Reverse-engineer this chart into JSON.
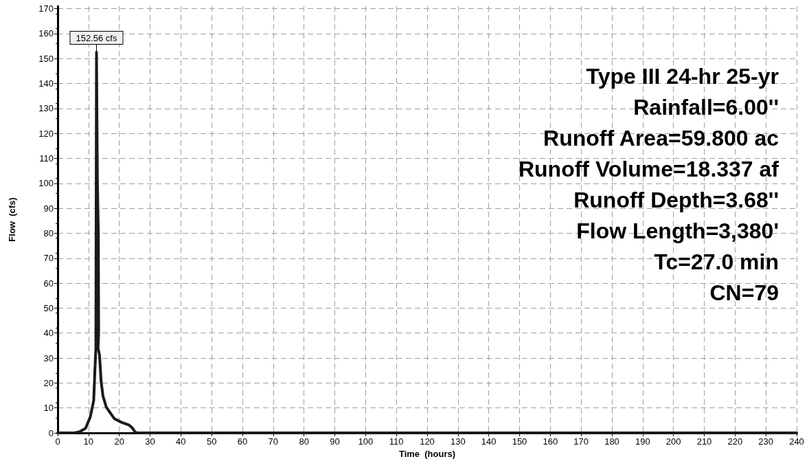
{
  "chart_data": {
    "type": "line",
    "xlabel": "Time  (hours)",
    "ylabel": "Flow  (cfs)",
    "x": [
      0,
      5.5,
      7.2,
      9.1,
      10.6,
      11.7,
      12.05,
      12.4,
      12.6,
      12.9,
      13.2,
      13.3,
      13.1,
      13.6,
      14.1,
      14.7,
      15.8,
      18.4,
      20.6,
      23.2,
      24.3,
      25.2,
      26,
      240
    ],
    "series": [
      {
        "color": "#1a1a1a",
        "values": [
          0,
          0,
          0.5,
          1.9,
          6.5,
          13,
          24,
          34,
          152.56,
          100,
          80,
          40,
          34,
          31,
          20.7,
          14.8,
          10.3,
          5.7,
          4.3,
          3.1,
          1.9,
          0.2,
          0,
          0
        ]
      }
    ],
    "xlim": [
      0,
      240
    ],
    "xticks": [
      0,
      10,
      20,
      30,
      40,
      50,
      60,
      70,
      80,
      90,
      100,
      110,
      120,
      130,
      140,
      150,
      160,
      170,
      180,
      190,
      200,
      210,
      220,
      230,
      240
    ],
    "ylim": [
      0,
      171
    ],
    "yticks": [
      0,
      10,
      20,
      30,
      40,
      50,
      60,
      70,
      80,
      90,
      100,
      110,
      120,
      130,
      140,
      150,
      160,
      170
    ],
    "grid": true,
    "marker": "none",
    "line_style": "solid",
    "annotations": [
      {
        "text": "152.56 cfs",
        "x": 12.6,
        "y": 152.56
      },
      "Type III 24-hr 25-yr",
      "Rainfall=6.00''",
      "Runoff Area=59.800 ac",
      "Runoff Volume=18.337 af",
      "Runoff Depth=3.68''",
      "Flow Length=3,380'",
      "Tc=27.0 min",
      "CN=79"
    ]
  }
}
